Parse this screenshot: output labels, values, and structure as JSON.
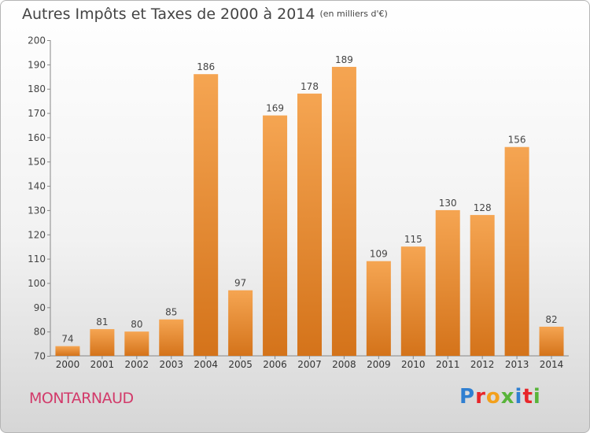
{
  "header": {
    "title": "Autres Impôts et Taxes de 2000 à 2014",
    "unit": "(en milliers d'€)"
  },
  "footer": {
    "commune": "MONTARNAUD",
    "logo": "Proxiti"
  },
  "colors": {
    "bar_light": "#f5a552",
    "bar_dark": "#d4731a",
    "commune": "#d23a6a"
  },
  "chart_data": {
    "type": "bar",
    "title": "Autres Impôts et Taxes de 2000 à 2014",
    "subtitle": "(en milliers d'€)",
    "categories": [
      "2000",
      "2001",
      "2002",
      "2003",
      "2004",
      "2005",
      "2006",
      "2007",
      "2008",
      "2009",
      "2010",
      "2011",
      "2012",
      "2013",
      "2014"
    ],
    "values": [
      74,
      81,
      80,
      85,
      186,
      97,
      169,
      178,
      189,
      109,
      115,
      130,
      128,
      156,
      82
    ],
    "ylim": [
      70,
      200
    ],
    "yticks": [
      70,
      80,
      90,
      100,
      110,
      120,
      130,
      140,
      150,
      160,
      170,
      180,
      190,
      200
    ],
    "grid": false,
    "data_labels": true
  }
}
